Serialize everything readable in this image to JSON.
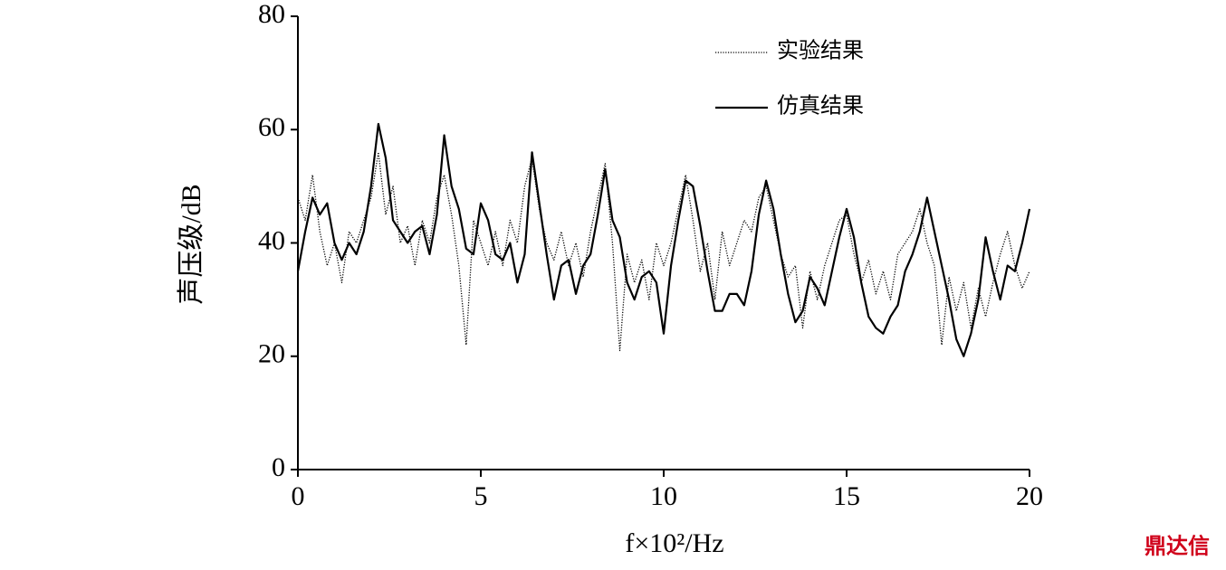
{
  "chart_data": {
    "type": "line",
    "xlabel": "f×10²/Hz",
    "ylabel": "声压级/dB",
    "x": [
      0,
      0.2,
      0.4,
      0.6,
      0.8,
      1,
      1.2,
      1.4,
      1.6,
      1.8,
      2,
      2.2,
      2.4,
      2.6,
      2.8,
      3,
      3.2,
      3.4,
      3.6,
      3.8,
      4,
      4.2,
      4.4,
      4.6,
      4.8,
      5,
      5.2,
      5.4,
      5.6,
      5.8,
      6,
      6.2,
      6.4,
      6.6,
      6.8,
      7,
      7.2,
      7.4,
      7.6,
      7.8,
      8,
      8.2,
      8.4,
      8.6,
      8.8,
      9,
      9.2,
      9.4,
      9.6,
      9.8,
      10,
      10.2,
      10.4,
      10.6,
      10.8,
      11,
      11.2,
      11.4,
      11.6,
      11.8,
      12,
      12.2,
      12.4,
      12.6,
      12.8,
      13,
      13.2,
      13.4,
      13.6,
      13.8,
      14,
      14.2,
      14.4,
      14.6,
      14.8,
      15,
      15.2,
      15.4,
      15.6,
      15.8,
      16,
      16.2,
      16.4,
      16.6,
      16.8,
      17,
      17.2,
      17.4,
      17.6,
      17.8,
      18,
      18.2,
      18.4,
      18.6,
      18.8,
      19,
      19.2,
      19.4,
      19.6,
      19.8,
      20
    ],
    "series": [
      {
        "name": "实验结果",
        "color": "#000000",
        "dash": "dotted",
        "values": [
          48,
          44,
          52,
          42,
          36,
          40,
          33,
          42,
          40,
          44,
          48,
          56,
          45,
          50,
          40,
          43,
          36,
          44,
          40,
          48,
          52,
          45,
          36,
          22,
          44,
          40,
          36,
          42,
          36,
          44,
          40,
          50,
          55,
          46,
          40,
          37,
          42,
          36,
          40,
          34,
          42,
          48,
          54,
          40,
          21,
          38,
          33,
          37,
          30,
          40,
          36,
          40,
          46,
          52,
          44,
          35,
          40,
          30,
          42,
          36,
          40,
          44,
          42,
          48,
          50,
          44,
          38,
          34,
          36,
          25,
          35,
          30,
          36,
          40,
          44,
          45,
          38,
          33,
          37,
          31,
          35,
          30,
          38,
          40,
          42,
          46,
          40,
          36,
          22,
          34,
          28,
          33,
          25,
          32,
          27,
          33,
          38,
          42,
          36,
          32,
          35
        ]
      },
      {
        "name": "仿真结果",
        "color": "#000000",
        "dash": "solid",
        "values": [
          35,
          42,
          48,
          45,
          47,
          40,
          37,
          40,
          38,
          42,
          50,
          61,
          55,
          44,
          42,
          40,
          42,
          43,
          38,
          45,
          59,
          50,
          46,
          39,
          38,
          47,
          44,
          38,
          37,
          40,
          33,
          38,
          56,
          47,
          38,
          30,
          36,
          37,
          31,
          36,
          38,
          45,
          53,
          44,
          41,
          33,
          30,
          34,
          35,
          33,
          24,
          36,
          44,
          51,
          50,
          43,
          35,
          28,
          28,
          31,
          31,
          29,
          35,
          45,
          51,
          46,
          38,
          31,
          26,
          28,
          34,
          32,
          29,
          35,
          41,
          46,
          41,
          33,
          27,
          25,
          24,
          27,
          29,
          35,
          38,
          42,
          48,
          42,
          36,
          30,
          23,
          20,
          24,
          30,
          41,
          35,
          30,
          36,
          35,
          40,
          46
        ]
      }
    ],
    "xlim": [
      0,
      20
    ],
    "xticks": [
      0,
      5,
      10,
      15,
      20
    ],
    "ylim": [
      0,
      80
    ],
    "yticks": [
      0,
      20,
      40,
      60,
      80
    ],
    "legend": "top-right"
  },
  "watermark": "鼎达信"
}
